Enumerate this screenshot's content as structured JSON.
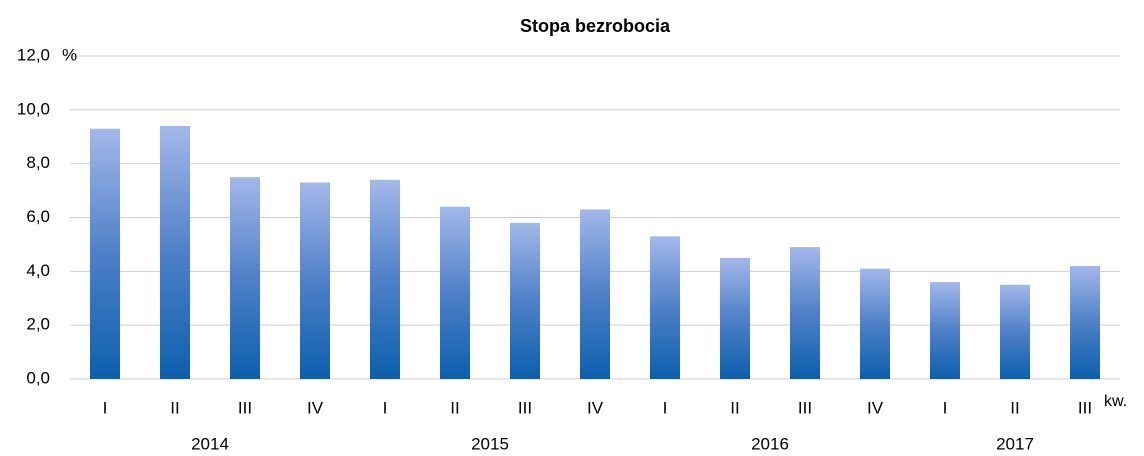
{
  "chart_data": {
    "type": "bar",
    "title": "Stopa bezrobocia",
    "categories": [
      "I",
      "II",
      "III",
      "IV",
      "I",
      "II",
      "III",
      "IV",
      "I",
      "II",
      "III",
      "IV",
      "I",
      "II",
      "III"
    ],
    "category_groups": [
      "2014",
      null,
      null,
      null,
      "2015",
      null,
      null,
      null,
      "2016",
      null,
      null,
      null,
      "2017",
      null,
      null
    ],
    "values": [
      9.3,
      9.4,
      7.5,
      7.3,
      7.4,
      6.4,
      5.8,
      6.3,
      5.3,
      4.5,
      4.9,
      4.1,
      3.6,
      3.5,
      4.2
    ],
    "y_unit": "%",
    "x_unit": "kw.",
    "ylim": [
      0,
      12
    ],
    "yticks": [
      {
        "value": 0,
        "label": "0,0"
      },
      {
        "value": 2,
        "label": "2,0"
      },
      {
        "value": 4,
        "label": "4,0"
      },
      {
        "value": 6,
        "label": "6,0"
      },
      {
        "value": 8,
        "label": "8,0"
      },
      {
        "value": 10,
        "label": "10,0"
      },
      {
        "value": 12,
        "label": "12,0"
      }
    ],
    "grid": true
  }
}
